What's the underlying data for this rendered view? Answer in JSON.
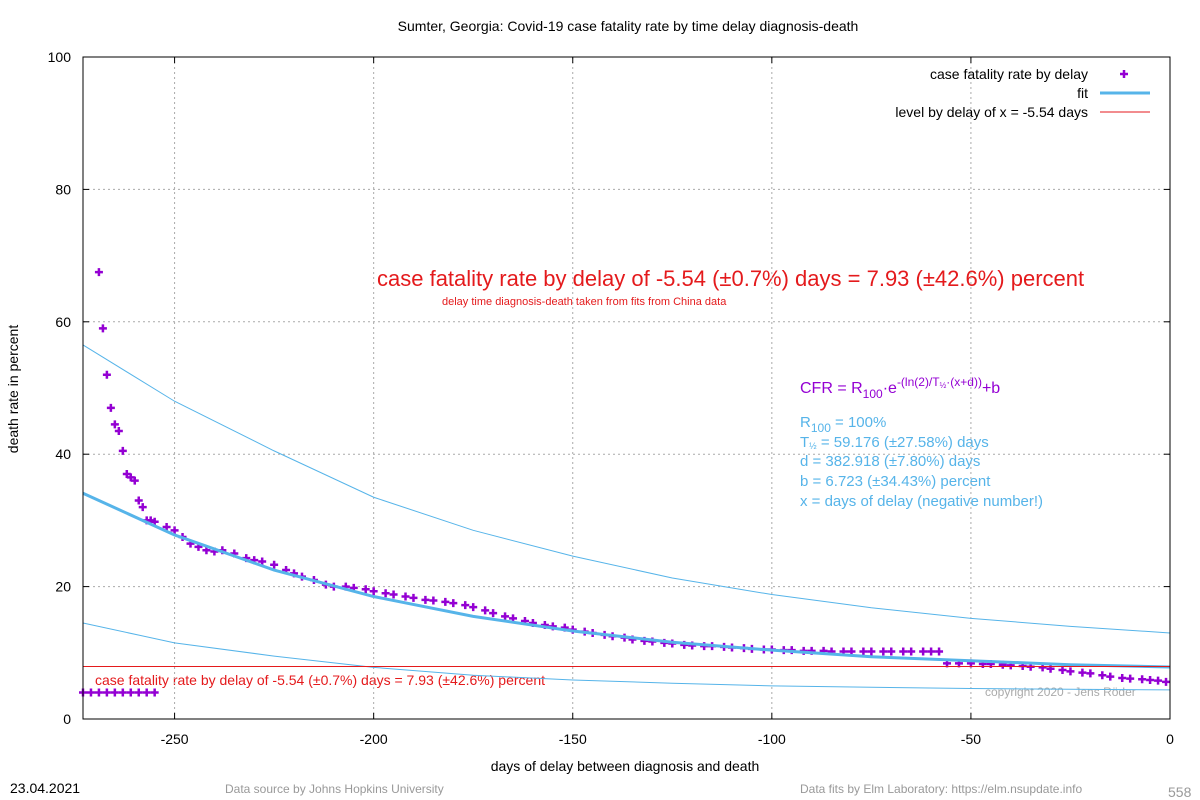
{
  "chart_data": {
    "type": "scatter",
    "title": "Sumter,  Georgia: Covid-19 case fatality rate by time delay diagnosis-death",
    "x_label": "days of delay between diagnosis and death",
    "y_label": "death rate in percent",
    "xlim": [
      -273,
      0
    ],
    "ylim": [
      0,
      100
    ],
    "xticks": [
      -250,
      -200,
      -150,
      -100,
      -50,
      0
    ],
    "yticks": [
      0,
      20,
      40,
      60,
      80,
      100
    ],
    "grid": true,
    "legend": "top-right",
    "series": [
      {
        "name": "case fatality rate by delay",
        "type": "scatter",
        "color": "#9400d3",
        "x": [
          -273,
          -271,
          -269,
          -267,
          -265,
          -263,
          -261,
          -259,
          -257,
          -255,
          -269,
          -268,
          -267,
          -266,
          -265,
          -264,
          -263,
          -262,
          -261,
          -260,
          -259,
          -258,
          -257,
          -256,
          -255,
          -252,
          -250,
          -248,
          -246,
          -244,
          -242,
          -240,
          -238,
          -235,
          -232,
          -230,
          -228,
          -225,
          -222,
          -220,
          -218,
          -215,
          -212,
          -210,
          -207,
          -205,
          -202,
          -200,
          -197,
          -195,
          -192,
          -190,
          -187,
          -185,
          -182,
          -180,
          -177,
          -175,
          -172,
          -170,
          -167,
          -165,
          -162,
          -160,
          -157,
          -155,
          -152,
          -150,
          -147,
          -145,
          -142,
          -140,
          -137,
          -135,
          -132,
          -130,
          -127,
          -125,
          -122,
          -120,
          -117,
          -115,
          -112,
          -110,
          -107,
          -105,
          -102,
          -100,
          -97,
          -95,
          -92,
          -90,
          -87,
          -85,
          -82,
          -80,
          -77,
          -75,
          -72,
          -70,
          -67,
          -65,
          -62,
          -60,
          -58,
          -56,
          -53,
          -50,
          -47,
          -45,
          -42,
          -40,
          -37,
          -35,
          -32,
          -30,
          -27,
          -25,
          -22,
          -20,
          -17,
          -15,
          -12,
          -10,
          -7,
          -5,
          -3,
          -1
        ],
        "values": [
          4,
          4,
          4,
          4,
          4,
          4,
          4,
          4,
          4,
          4,
          67.5,
          59,
          52,
          47,
          44.5,
          43.5,
          40.5,
          37,
          36.5,
          36,
          33,
          32,
          30,
          30,
          29.8,
          29,
          28.5,
          27.5,
          26.5,
          26,
          25.5,
          25.3,
          25.5,
          25,
          24.3,
          24,
          23.8,
          23.3,
          22.5,
          22,
          21.5,
          21,
          20.3,
          20,
          20,
          19.8,
          19.6,
          19.3,
          19,
          18.8,
          18.5,
          18.3,
          18,
          17.9,
          17.7,
          17.5,
          17.2,
          16.9,
          16.4,
          16,
          15.5,
          15.2,
          14.8,
          14.5,
          14.2,
          14,
          13.8,
          13.5,
          13.2,
          13,
          12.7,
          12.5,
          12.3,
          12,
          11.8,
          11.7,
          11.5,
          11.4,
          11.2,
          11.1,
          11,
          11,
          10.9,
          10.8,
          10.7,
          10.6,
          10.5,
          10.5,
          10.4,
          10.4,
          10.3,
          10.3,
          10.3,
          10.2,
          10.2,
          10.2,
          10.2,
          10.2,
          10.2,
          10.2,
          10.2,
          10.2,
          10.2,
          10.2,
          10.2,
          8.4,
          8.4,
          8.4,
          8.3,
          8.3,
          8.2,
          8.1,
          8,
          7.9,
          7.8,
          7.6,
          7.4,
          7.2,
          7,
          6.9,
          6.6,
          6.4,
          6.2,
          6.1,
          6,
          5.9,
          5.8,
          5.6
        ]
      },
      {
        "name": "fit",
        "type": "line",
        "color": "#56b4e9",
        "width": 3,
        "x": [
          -273,
          -250,
          -225,
          -200,
          -175,
          -150,
          -125,
          -100,
          -75,
          -50,
          -25,
          0
        ],
        "values": [
          34.1,
          27.8,
          22.5,
          18.5,
          15.5,
          13.3,
          11.6,
          10.4,
          9.4,
          8.8,
          8.2,
          7.85
        ]
      },
      {
        "type": "line",
        "color": "#56b4e9",
        "width": 1,
        "x": [
          -273,
          -250,
          -225,
          -200,
          -175,
          -150,
          -125,
          -100,
          -75,
          -50,
          -25,
          0
        ],
        "values": [
          56.5,
          48,
          40.5,
          33.5,
          28.5,
          24.6,
          21.3,
          18.8,
          16.8,
          15.2,
          14,
          13
        ]
      },
      {
        "type": "line",
        "color": "#56b4e9",
        "width": 1,
        "x": [
          -273,
          -250,
          -225,
          -200,
          -175,
          -150,
          -125,
          -100,
          -75,
          -50,
          -25,
          0
        ],
        "values": [
          14.5,
          11.5,
          9.5,
          7.8,
          6.6,
          5.9,
          5.4,
          5,
          4.8,
          4.6,
          4.5,
          4.4
        ]
      },
      {
        "name": "level by delay of x = -5.54 days",
        "type": "hline",
        "color": "#e41a1c",
        "value": 7.93
      }
    ],
    "annotations": {
      "headline": "case fatality rate by delay of -5.54 (±0.7%) days = 7.93 (±42.6%) percent",
      "subline": "delay time diagnosis-death taken from fits from China data",
      "level_text": "case fatality rate by delay of -5.54 (±0.7%) days = 7.93 (±42.6%) percent",
      "formula": [
        "CFR = R",
        "100",
        "·e",
        "-(ln(2)/T",
        "½",
        "·(x+d))",
        "+b"
      ],
      "r100": [
        "R",
        "100",
        " = 100%"
      ],
      "thalf": [
        "T",
        "½",
        " = 59.176 (±27.58%) days"
      ],
      "d": "d = 382.918 (±7.80%) days",
      "b": "b = 6.723 (±34.43%) percent",
      "x_note": "x = days of delay (negative number!)",
      "copyright": "copyright 2020 - Jens Röder"
    }
  },
  "footer": {
    "date": "23.04.2021",
    "source": "Data source by Johns Hopkins University",
    "fits": "Data fits by Elm Laboratory: https://elm.nsupdate.info",
    "number": "558"
  }
}
